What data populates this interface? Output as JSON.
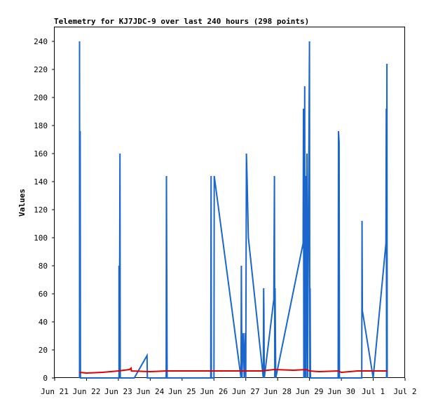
{
  "chart_data": {
    "type": "line",
    "title": "Telemetry for KJ7JDC-9 over last 240 hours (298 points)",
    "xlabel": "",
    "ylabel": "Values",
    "ylim": [
      0,
      250
    ],
    "xlim": [
      0,
      11
    ],
    "y_ticks": [
      0,
      20,
      40,
      60,
      80,
      100,
      120,
      140,
      160,
      180,
      200,
      220,
      240
    ],
    "x_ticks": [
      {
        "x": 0,
        "label": "Jun 21"
      },
      {
        "x": 1,
        "label": "Jun 22"
      },
      {
        "x": 2,
        "label": "Jun 23"
      },
      {
        "x": 3,
        "label": "Jun 24"
      },
      {
        "x": 4,
        "label": "Jun 25"
      },
      {
        "x": 5,
        "label": "Jun 26"
      },
      {
        "x": 6,
        "label": "Jun 27"
      },
      {
        "x": 7,
        "label": "Jun 28"
      },
      {
        "x": 8,
        "label": "Jun 29"
      },
      {
        "x": 9,
        "label": "Jun 30"
      },
      {
        "x": 10,
        "label": "Jul 1"
      },
      {
        "x": 11,
        "label": "Jul 2"
      }
    ],
    "grid": false,
    "legend": "none",
    "series": [
      {
        "color": "#1a66cc",
        "points": [
          [
            0.78,
            0
          ],
          [
            0.78,
            240
          ],
          [
            0.79,
            5
          ],
          [
            0.8,
            176
          ],
          [
            0.81,
            0
          ],
          [
            2.02,
            0
          ],
          [
            2.02,
            80
          ],
          [
            2.03,
            3
          ],
          [
            2.05,
            160
          ],
          [
            2.06,
            0
          ],
          [
            2.5,
            0
          ],
          [
            2.9,
            16
          ],
          [
            2.91,
            0
          ],
          [
            3.5,
            0
          ],
          [
            3.51,
            144
          ],
          [
            3.52,
            72
          ],
          [
            3.53,
            0
          ],
          [
            4.9,
            0
          ],
          [
            4.91,
            144
          ],
          [
            4.92,
            0
          ],
          [
            5.0,
            0
          ],
          [
            5.01,
            144
          ],
          [
            5.85,
            0
          ],
          [
            5.86,
            80
          ],
          [
            5.87,
            40
          ],
          [
            5.88,
            0
          ],
          [
            5.92,
            32
          ],
          [
            5.95,
            0
          ],
          [
            5.98,
            32
          ],
          [
            6.0,
            0
          ],
          [
            6.02,
            160
          ],
          [
            6.04,
            144
          ],
          [
            6.08,
            100
          ],
          [
            6.55,
            0
          ],
          [
            6.56,
            64
          ],
          [
            6.57,
            48
          ],
          [
            6.58,
            0
          ],
          [
            6.88,
            56
          ],
          [
            6.9,
            144
          ],
          [
            6.91,
            0
          ],
          [
            6.92,
            64
          ],
          [
            6.93,
            32
          ],
          [
            6.94,
            0
          ],
          [
            7.8,
            96
          ],
          [
            7.81,
            192
          ],
          [
            7.82,
            0
          ],
          [
            7.85,
            208
          ],
          [
            7.86,
            0
          ],
          [
            7.88,
            144
          ],
          [
            7.89,
            0
          ],
          [
            7.92,
            160
          ],
          [
            7.93,
            80
          ],
          [
            7.94,
            0
          ],
          [
            8.0,
            240
          ],
          [
            8.01,
            0
          ],
          [
            8.02,
            64
          ],
          [
            8.03,
            0
          ],
          [
            8.9,
            0
          ],
          [
            8.91,
            176
          ],
          [
            8.93,
            168
          ],
          [
            8.94,
            0
          ],
          [
            9.64,
            0
          ],
          [
            9.65,
            112
          ],
          [
            9.66,
            48
          ],
          [
            10.0,
            0
          ],
          [
            10.4,
            96
          ],
          [
            10.41,
            192
          ],
          [
            10.42,
            0
          ],
          [
            10.43,
            224
          ],
          [
            10.44,
            0
          ]
        ]
      },
      {
        "color": "#e00000",
        "points": [
          [
            0.78,
            4
          ],
          [
            1.0,
            3.5
          ],
          [
            1.5,
            4
          ],
          [
            2.0,
            5
          ],
          [
            2.35,
            6
          ],
          [
            2.4,
            7
          ],
          [
            2.41,
            5
          ],
          [
            3.0,
            4.5
          ],
          [
            3.5,
            5
          ],
          [
            4.0,
            5
          ],
          [
            5.0,
            5
          ],
          [
            6.0,
            5
          ],
          [
            6.5,
            5
          ],
          [
            6.9,
            6
          ],
          [
            7.5,
            5.5
          ],
          [
            7.9,
            6
          ],
          [
            8.0,
            5
          ],
          [
            8.3,
            4.5
          ],
          [
            8.9,
            5
          ],
          [
            9.0,
            4
          ],
          [
            9.5,
            5
          ],
          [
            10.0,
            5
          ],
          [
            10.44,
            5
          ]
        ]
      }
    ]
  }
}
